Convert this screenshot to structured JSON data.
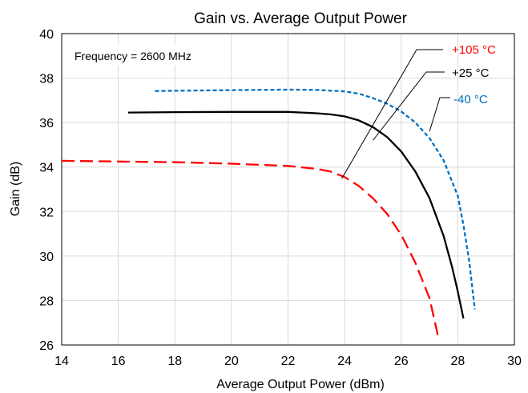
{
  "chart_data": {
    "type": "line",
    "title": "Gain vs. Average Output Power",
    "xlabel": "Average Output Power (dBm)",
    "ylabel": "Gain (dB)",
    "xlim": [
      14,
      30
    ],
    "ylim": [
      26,
      40
    ],
    "xticks": [
      14,
      16,
      18,
      20,
      22,
      24,
      26,
      28,
      30
    ],
    "yticks": [
      26,
      28,
      30,
      32,
      34,
      36,
      38,
      40
    ],
    "grid": true,
    "annotation": "Frequency = 2600 MHz",
    "series": [
      {
        "name": "+105 °C",
        "color": "#ff0000",
        "line_style": "long-dash",
        "x": [
          14.0,
          16.0,
          18.0,
          20.0,
          21.0,
          22.0,
          23.0,
          23.5,
          24.0,
          24.5,
          25.0,
          25.5,
          26.0,
          26.5,
          27.0,
          27.3
        ],
        "y": [
          34.28,
          34.25,
          34.22,
          34.15,
          34.1,
          34.05,
          33.92,
          33.8,
          33.55,
          33.15,
          32.6,
          31.9,
          30.95,
          29.7,
          28.1,
          26.4
        ]
      },
      {
        "name": "+25 °C",
        "color": "#000000",
        "line_style": "solid",
        "x": [
          16.35,
          18.0,
          20.0,
          22.0,
          23.0,
          23.5,
          24.0,
          24.5,
          25.0,
          25.5,
          26.0,
          26.5,
          27.0,
          27.5,
          27.8,
          28.0,
          28.2
        ],
        "y": [
          36.45,
          36.47,
          36.48,
          36.48,
          36.42,
          36.37,
          36.28,
          36.1,
          35.8,
          35.35,
          34.7,
          33.8,
          32.6,
          30.9,
          29.5,
          28.4,
          27.2
        ]
      },
      {
        "name": "-40 °C",
        "color": "#0070c0",
        "line_style": "short-dash",
        "x": [
          17.3,
          18.0,
          20.0,
          22.0,
          23.0,
          24.0,
          24.5,
          25.0,
          25.5,
          26.0,
          26.5,
          27.0,
          27.5,
          28.0,
          28.2,
          28.4,
          28.6
        ],
        "y": [
          37.42,
          37.43,
          37.46,
          37.48,
          37.47,
          37.4,
          37.3,
          37.1,
          36.85,
          36.5,
          36.0,
          35.3,
          34.3,
          32.7,
          31.4,
          29.8,
          27.6
        ]
      }
    ]
  }
}
